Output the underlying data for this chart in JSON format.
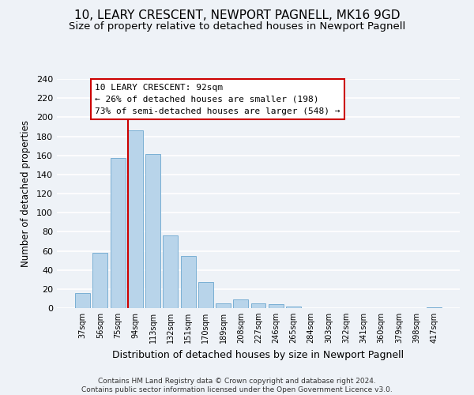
{
  "title": "10, LEARY CRESCENT, NEWPORT PAGNELL, MK16 9GD",
  "subtitle": "Size of property relative to detached houses in Newport Pagnell",
  "xlabel": "Distribution of detached houses by size in Newport Pagnell",
  "ylabel": "Number of detached properties",
  "footer_line1": "Contains HM Land Registry data © Crown copyright and database right 2024.",
  "footer_line2": "Contains public sector information licensed under the Open Government Licence v3.0.",
  "bin_labels": [
    "37sqm",
    "56sqm",
    "75sqm",
    "94sqm",
    "113sqm",
    "132sqm",
    "151sqm",
    "170sqm",
    "189sqm",
    "208sqm",
    "227sqm",
    "246sqm",
    "265sqm",
    "284sqm",
    "303sqm",
    "322sqm",
    "341sqm",
    "360sqm",
    "379sqm",
    "398sqm",
    "417sqm"
  ],
  "bin_values": [
    16,
    58,
    157,
    186,
    161,
    76,
    55,
    27,
    5,
    9,
    5,
    4,
    2,
    0,
    0,
    0,
    0,
    0,
    0,
    0,
    1
  ],
  "bar_color": "#b8d4ea",
  "bar_edge_color": "#7aafd4",
  "vline_x_index": 3,
  "vline_color": "#cc0000",
  "annotation_title": "10 LEARY CRESCENT: 92sqm",
  "annotation_line2": "← 26% of detached houses are smaller (198)",
  "annotation_line3": "73% of semi-detached houses are larger (548) →",
  "annotation_box_color": "#ffffff",
  "annotation_box_edge": "#cc0000",
  "ylim": [
    0,
    240
  ],
  "yticks": [
    0,
    20,
    40,
    60,
    80,
    100,
    120,
    140,
    160,
    180,
    200,
    220,
    240
  ],
  "background_color": "#eef2f7",
  "grid_color": "#ffffff",
  "title_fontsize": 11,
  "subtitle_fontsize": 9.5
}
